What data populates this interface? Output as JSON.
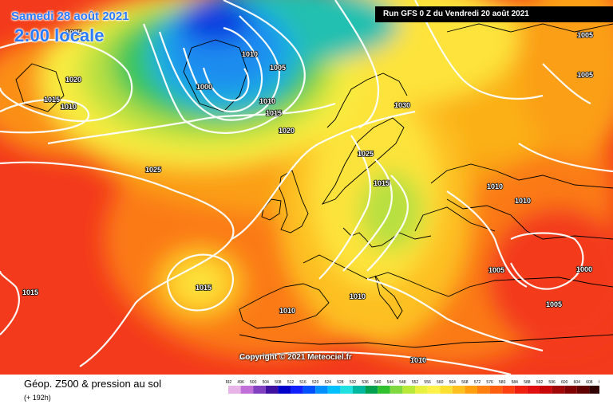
{
  "header": {
    "date": "Samedi 28 août 2021",
    "local_time": "2:00 locale",
    "run": "Run GFS 0 Z du Vendredi 20 août 2021"
  },
  "copyright": "Copyright © 2021 Meteociel.fr",
  "footer": {
    "title": "Géop. Z500 & pression au sol",
    "subtitle": "(+ 192h)"
  },
  "colors": {
    "ocean_red": "#f33a1c",
    "orange": "#fb8f14",
    "yellow": "#fde33a",
    "green": "#39c55a",
    "blue": "#1f8cf0",
    "isobar": "#ffffff"
  },
  "pressure_labels": [
    "1025",
    "1020",
    "1015",
    "1010",
    "1010",
    "1000",
    "1005",
    "1010",
    "1015",
    "1020",
    "1030",
    "1025",
    "1015",
    "1025",
    "1015",
    "1015",
    "1010",
    "1010",
    "1010",
    "1005",
    "1005",
    "1000",
    "1005",
    "1005",
    "1010",
    "1010"
  ],
  "scale": {
    "ticks": [
      "492",
      "496",
      "500",
      "504",
      "508",
      "512",
      "516",
      "520",
      "524",
      "528",
      "532",
      "536",
      "540",
      "544",
      "548",
      "552",
      "556",
      "560",
      "564",
      "568",
      "572",
      "576",
      "580",
      "584",
      "588",
      "592",
      "596",
      "600",
      "604",
      "608",
      "612"
    ],
    "colors": [
      "#e8b4e8",
      "#c070d8",
      "#8040c0",
      "#4010a0",
      "#0000c8",
      "#1020ff",
      "#0050ff",
      "#0090ff",
      "#00c0ff",
      "#20e0e0",
      "#00b8a0",
      "#00a050",
      "#30c030",
      "#80d840",
      "#b8e838",
      "#e8f040",
      "#fff04a",
      "#ffe030",
      "#ffc020",
      "#ffa010",
      "#ff8010",
      "#ff6010",
      "#ff4010",
      "#f02010",
      "#e01010",
      "#c80808",
      "#a00808",
      "#800000",
      "#600000",
      "#300000"
    ]
  }
}
